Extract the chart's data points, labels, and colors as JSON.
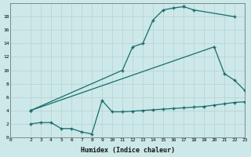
{
  "xlabel": "Humidex (Indice chaleur)",
  "bg_color": "#cce8e8",
  "grid_color": "#c0d8d8",
  "line_color": "#1a6b6b",
  "xlim": [
    0,
    23
  ],
  "ylim": [
    0,
    20
  ],
  "xticks": [
    0,
    2,
    3,
    4,
    5,
    6,
    7,
    8,
    9,
    10,
    11,
    12,
    13,
    14,
    15,
    16,
    17,
    18,
    19,
    20,
    21,
    22,
    23
  ],
  "yticks": [
    0,
    2,
    4,
    6,
    8,
    10,
    12,
    14,
    16,
    18
  ],
  "line1_x": [
    2,
    11,
    12,
    13,
    14,
    15,
    16,
    17,
    17,
    18,
    22
  ],
  "line1_y": [
    4,
    10,
    13.5,
    14,
    17.5,
    19,
    19.3,
    19.5,
    19.5,
    19,
    18
  ],
  "line2_x": [
    2,
    20,
    21,
    22,
    23
  ],
  "line2_y": [
    4,
    13.5,
    9.5,
    8.5,
    7
  ],
  "line3_x": [
    2,
    3,
    4,
    5,
    6,
    7,
    8,
    9,
    10,
    11,
    12,
    13,
    14,
    15,
    16,
    17,
    18,
    19,
    20,
    21,
    22,
    23
  ],
  "line3_y": [
    2,
    2.2,
    2.2,
    1.3,
    1.3,
    0.8,
    0.5,
    5.5,
    3.8,
    3.8,
    3.9,
    4.0,
    4.1,
    4.2,
    4.3,
    4.4,
    4.5,
    4.6,
    4.8,
    5.0,
    5.2,
    5.3
  ]
}
